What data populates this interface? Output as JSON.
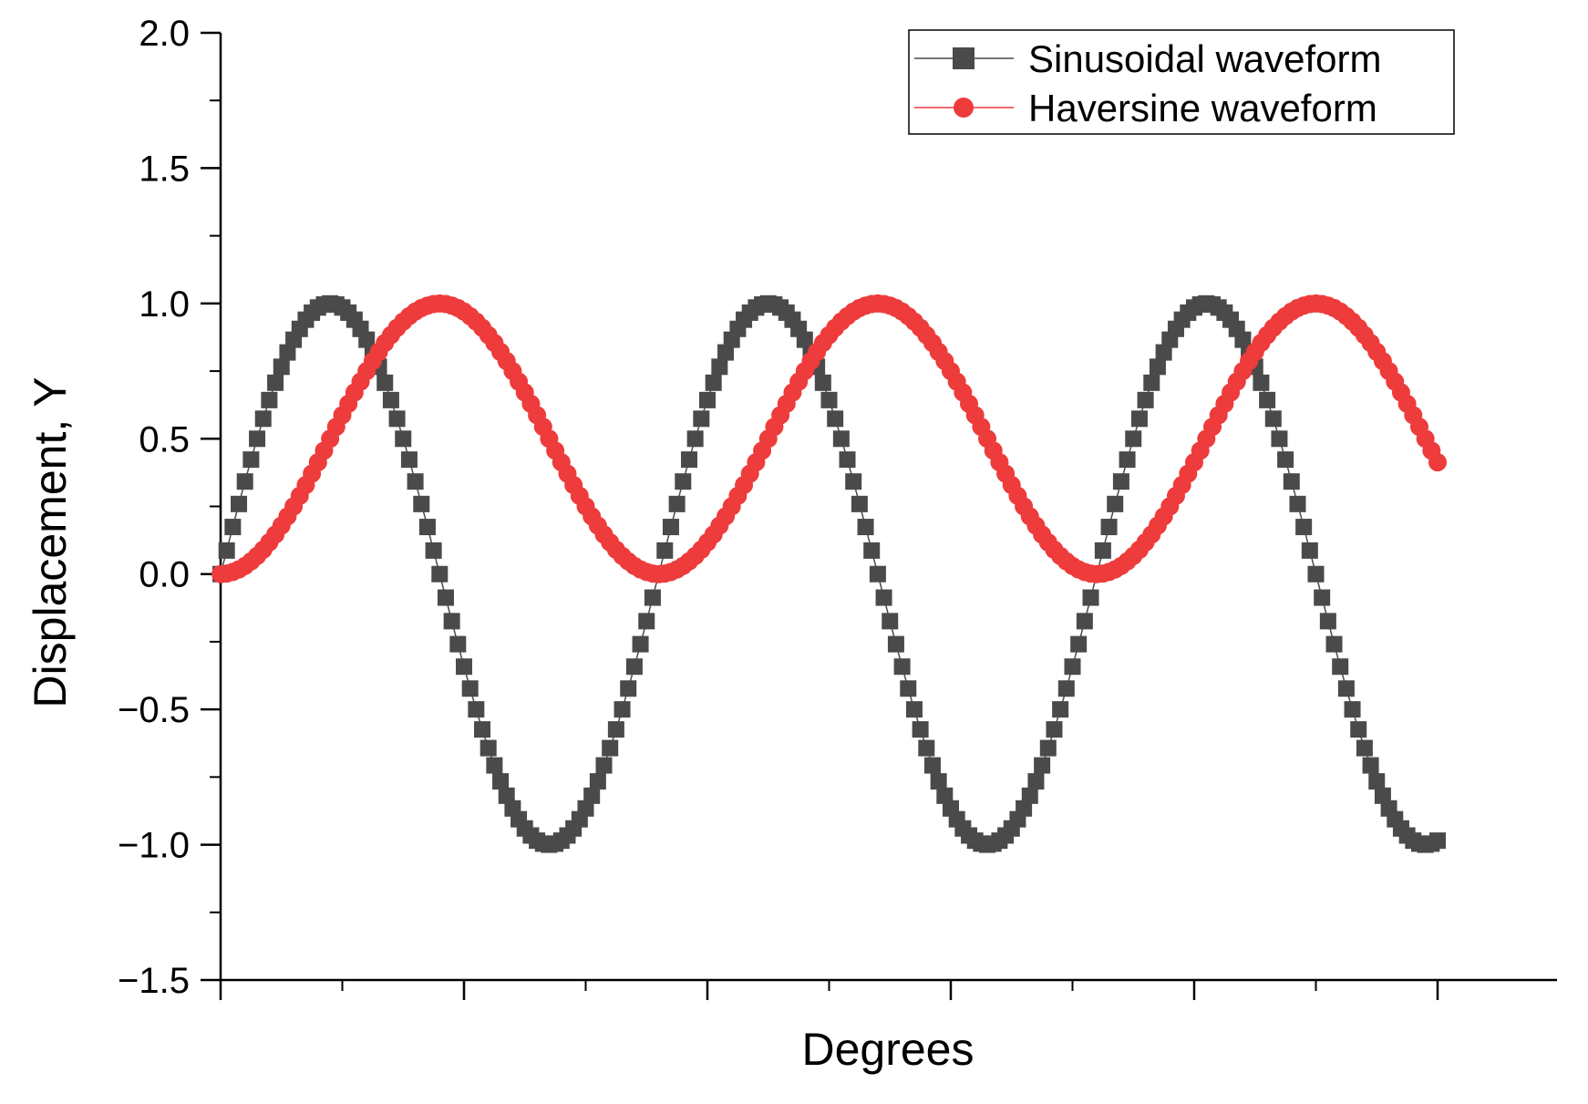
{
  "chart_data": {
    "type": "scatter",
    "title": "",
    "xlabel": "Degrees",
    "ylabel": "Displacement, Y",
    "ylim": [
      -1.5,
      2.0
    ],
    "yticks": [
      "2.0",
      "1.5",
      "1.0",
      "0.5",
      "0.0",
      "−0.5",
      "−1.0",
      "−1.5"
    ],
    "ytick_values": [
      2.0,
      1.5,
      1.0,
      0.5,
      0.0,
      -0.5,
      -1.0,
      -1.5
    ],
    "x_tick_labels_shown": false,
    "grid": false,
    "legend_placement": "top-right",
    "series": [
      {
        "name": "Sinusoidal waveform",
        "marker": "square",
        "color": "#4a4a4a",
        "x": [
          0,
          5,
          10,
          15,
          20,
          25,
          30,
          35,
          40,
          45,
          50,
          55,
          60,
          65,
          70,
          75,
          80,
          85,
          90,
          95,
          100,
          105,
          110,
          115,
          120,
          125,
          130,
          135,
          140,
          145,
          150,
          155,
          160,
          165,
          170,
          175,
          180,
          185,
          190,
          195,
          200,
          205,
          210,
          215,
          220,
          225,
          230,
          235,
          240,
          245,
          250,
          255,
          260,
          265,
          270,
          275,
          280,
          285,
          290,
          295,
          300,
          305,
          310,
          315,
          320,
          325,
          330,
          335,
          340,
          345,
          350,
          355,
          360,
          365,
          370,
          375,
          380,
          385,
          390,
          395,
          400,
          405,
          410,
          415,
          420,
          425,
          430,
          435,
          440,
          445,
          450,
          455,
          460,
          465,
          470,
          475,
          480,
          485,
          490,
          495,
          500,
          505,
          510,
          515,
          520,
          525,
          530,
          535,
          540,
          545,
          550,
          555,
          560,
          565,
          570,
          575,
          580,
          585,
          590,
          595,
          600,
          605,
          610,
          615,
          620,
          625,
          630,
          635,
          640,
          645,
          650,
          655,
          660,
          665,
          670,
          675,
          680,
          685,
          690,
          695,
          700,
          705,
          710,
          715,
          720,
          725,
          730,
          735,
          740,
          745,
          750,
          755,
          760,
          765,
          770,
          775,
          780,
          785,
          790,
          795,
          800,
          805,
          810,
          815,
          820,
          825,
          830,
          835,
          840,
          845,
          850,
          855,
          860,
          865,
          870,
          875,
          880,
          885,
          890,
          895,
          900,
          905,
          910,
          915,
          920,
          925,
          930,
          935,
          940,
          945,
          950,
          955,
          960,
          965,
          970,
          975,
          980,
          985,
          990,
          995,
          1000
        ],
        "y": [
          0.0,
          0.087,
          0.174,
          0.259,
          0.342,
          0.423,
          0.5,
          0.574,
          0.643,
          0.707,
          0.766,
          0.819,
          0.866,
          0.906,
          0.94,
          0.966,
          0.985,
          0.996,
          1.0,
          0.996,
          0.985,
          0.966,
          0.94,
          0.906,
          0.866,
          0.819,
          0.766,
          0.707,
          0.643,
          0.574,
          0.5,
          0.423,
          0.342,
          0.259,
          0.174,
          0.087,
          0.0,
          -0.087,
          -0.174,
          -0.259,
          -0.342,
          -0.423,
          -0.5,
          -0.574,
          -0.643,
          -0.707,
          -0.766,
          -0.819,
          -0.866,
          -0.906,
          -0.94,
          -0.966,
          -0.985,
          -0.996,
          -1.0,
          -0.996,
          -0.985,
          -0.966,
          -0.94,
          -0.906,
          -0.866,
          -0.819,
          -0.766,
          -0.707,
          -0.643,
          -0.574,
          -0.5,
          -0.423,
          -0.342,
          -0.259,
          -0.174,
          -0.087,
          0.0,
          0.087,
          0.174,
          0.259,
          0.342,
          0.423,
          0.5,
          0.574,
          0.643,
          0.707,
          0.766,
          0.819,
          0.866,
          0.906,
          0.94,
          0.966,
          0.985,
          0.996,
          1.0,
          0.996,
          0.985,
          0.966,
          0.94,
          0.906,
          0.866,
          0.819,
          0.766,
          0.707,
          0.643,
          0.574,
          0.5,
          0.423,
          0.342,
          0.259,
          0.174,
          0.087,
          0.0,
          -0.087,
          -0.174,
          -0.259,
          -0.342,
          -0.423,
          -0.5,
          -0.574,
          -0.643,
          -0.707,
          -0.766,
          -0.819,
          -0.866,
          -0.906,
          -0.94,
          -0.966,
          -0.985,
          -0.996,
          -1.0,
          -0.996,
          -0.985,
          -0.966,
          -0.94,
          -0.906,
          -0.866,
          -0.819,
          -0.766,
          -0.707,
          -0.643,
          -0.574,
          -0.5,
          -0.423,
          -0.342,
          -0.259,
          -0.174,
          -0.087,
          0.0,
          0.087,
          0.174,
          0.259,
          0.342,
          0.423,
          0.5,
          0.574,
          0.643,
          0.707,
          0.766,
          0.819,
          0.866,
          0.906,
          0.94,
          0.966,
          0.985,
          0.996,
          1.0,
          0.996,
          0.985,
          0.966,
          0.94,
          0.906,
          0.866,
          0.819,
          0.766,
          0.707,
          0.643,
          0.574,
          0.5,
          0.423,
          0.342,
          0.259,
          0.174,
          0.087,
          0.0,
          -0.087,
          -0.174,
          -0.259,
          -0.342,
          -0.423,
          -0.5,
          -0.574,
          -0.643,
          -0.707,
          -0.766,
          -0.819,
          -0.866,
          -0.906,
          -0.94,
          -0.966,
          -0.985,
          -0.996,
          -1.0,
          -0.996,
          -0.985
        ]
      },
      {
        "name": "Haversine waveform",
        "marker": "circle",
        "color": "#ee3b3b",
        "x": [
          0,
          5,
          10,
          15,
          20,
          25,
          30,
          35,
          40,
          45,
          50,
          55,
          60,
          65,
          70,
          75,
          80,
          85,
          90,
          95,
          100,
          105,
          110,
          115,
          120,
          125,
          130,
          135,
          140,
          145,
          150,
          155,
          160,
          165,
          170,
          175,
          180,
          185,
          190,
          195,
          200,
          205,
          210,
          215,
          220,
          225,
          230,
          235,
          240,
          245,
          250,
          255,
          260,
          265,
          270,
          275,
          280,
          285,
          290,
          295,
          300,
          305,
          310,
          315,
          320,
          325,
          330,
          335,
          340,
          345,
          350,
          355,
          360,
          365,
          370,
          375,
          380,
          385,
          390,
          395,
          400,
          405,
          410,
          415,
          420,
          425,
          430,
          435,
          440,
          445,
          450,
          455,
          460,
          465,
          470,
          475,
          480,
          485,
          490,
          495,
          500,
          505,
          510,
          515,
          520,
          525,
          530,
          535,
          540,
          545,
          550,
          555,
          560,
          565,
          570,
          575,
          580,
          585,
          590,
          595,
          600,
          605,
          610,
          615,
          620,
          625,
          630,
          635,
          640,
          645,
          650,
          655,
          660,
          665,
          670,
          675,
          680,
          685,
          690,
          695,
          700,
          705,
          710,
          715,
          720,
          725,
          730,
          735,
          740,
          745,
          750,
          755,
          760,
          765,
          770,
          775,
          780,
          785,
          790,
          795,
          800,
          805,
          810,
          815,
          820,
          825,
          830,
          835,
          840,
          845,
          850,
          855,
          860,
          865,
          870,
          875,
          880,
          885,
          890,
          895,
          900,
          905,
          910,
          915,
          920,
          925,
          930,
          935,
          940,
          945,
          950,
          955,
          960,
          965,
          970,
          975,
          980,
          985,
          990,
          995,
          1000
        ],
        "y": [
          0.0,
          0.002,
          0.008,
          0.017,
          0.03,
          0.047,
          0.067,
          0.09,
          0.117,
          0.146,
          0.179,
          0.213,
          0.25,
          0.289,
          0.329,
          0.371,
          0.413,
          0.456,
          0.5,
          0.544,
          0.587,
          0.629,
          0.671,
          0.711,
          0.75,
          0.787,
          0.821,
          0.854,
          0.883,
          0.91,
          0.933,
          0.953,
          0.97,
          0.983,
          0.992,
          0.998,
          1.0,
          0.998,
          0.992,
          0.983,
          0.97,
          0.953,
          0.933,
          0.91,
          0.883,
          0.854,
          0.821,
          0.787,
          0.75,
          0.711,
          0.671,
          0.629,
          0.587,
          0.544,
          0.5,
          0.456,
          0.413,
          0.371,
          0.329,
          0.289,
          0.25,
          0.213,
          0.179,
          0.146,
          0.117,
          0.09,
          0.067,
          0.047,
          0.03,
          0.017,
          0.008,
          0.002,
          0.0,
          0.002,
          0.008,
          0.017,
          0.03,
          0.047,
          0.067,
          0.09,
          0.117,
          0.146,
          0.179,
          0.213,
          0.25,
          0.289,
          0.329,
          0.371,
          0.413,
          0.456,
          0.5,
          0.544,
          0.587,
          0.629,
          0.671,
          0.711,
          0.75,
          0.787,
          0.821,
          0.854,
          0.883,
          0.91,
          0.933,
          0.953,
          0.97,
          0.983,
          0.992,
          0.998,
          1.0,
          0.998,
          0.992,
          0.983,
          0.97,
          0.953,
          0.933,
          0.91,
          0.883,
          0.854,
          0.821,
          0.787,
          0.75,
          0.711,
          0.671,
          0.629,
          0.587,
          0.544,
          0.5,
          0.456,
          0.413,
          0.371,
          0.329,
          0.289,
          0.25,
          0.213,
          0.179,
          0.146,
          0.117,
          0.09,
          0.067,
          0.047,
          0.03,
          0.017,
          0.008,
          0.002,
          0.0,
          0.002,
          0.008,
          0.017,
          0.03,
          0.047,
          0.067,
          0.09,
          0.117,
          0.146,
          0.179,
          0.213,
          0.25,
          0.289,
          0.329,
          0.371,
          0.413,
          0.456,
          0.5,
          0.544,
          0.587,
          0.629,
          0.671,
          0.711,
          0.75,
          0.787,
          0.821,
          0.854,
          0.883,
          0.91,
          0.933,
          0.953,
          0.97,
          0.983,
          0.992,
          0.998,
          1.0,
          0.998,
          0.992,
          0.983,
          0.97,
          0.953,
          0.933,
          0.91,
          0.883,
          0.854,
          0.821,
          0.787,
          0.75,
          0.711,
          0.671,
          0.629,
          0.587,
          0.544,
          0.5,
          0.456,
          0.413
        ]
      }
    ]
  }
}
